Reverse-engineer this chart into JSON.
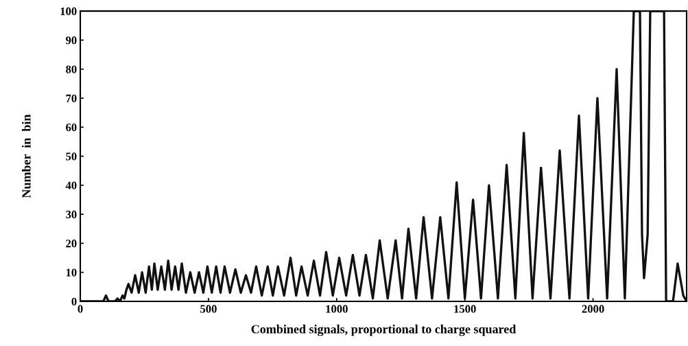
{
  "chart_data": {
    "type": "line",
    "xlabel": "Combined signals, proportional to charge squared",
    "ylabel": "Number  in  bin",
    "xlim": [
      0,
      2365
    ],
    "ylim": [
      0,
      100
    ],
    "xticks": [
      0,
      500,
      1000,
      1500,
      2000
    ],
    "yticks": [
      0,
      10,
      20,
      30,
      40,
      50,
      60,
      70,
      80,
      90,
      100
    ],
    "grid": false,
    "marker": "none",
    "line_style": "solid",
    "series": [
      {
        "color": "#111111",
        "x": [
          0,
          90,
          100,
          110,
          135,
          145,
          155,
          165,
          172,
          180,
          188,
          200,
          214,
          228,
          241,
          255,
          268,
          279,
          289,
          302,
          316,
          330,
          343,
          356,
          370,
          383,
          396,
          412,
          429,
          446,
          463,
          480,
          496,
          513,
          530,
          547,
          563,
          584,
          605,
          626,
          646,
          666,
          686,
          708,
          731,
          751,
          771,
          795,
          820,
          842,
          863,
          887,
          911,
          935,
          959,
          985,
          1010,
          1037,
          1063,
          1089,
          1114,
          1141,
          1168,
          1199,
          1230,
          1255,
          1280,
          1310,
          1339,
          1372,
          1404,
          1436,
          1468,
          1500,
          1532,
          1563,
          1594,
          1629,
          1663,
          1697,
          1730,
          1764,
          1797,
          1834,
          1870,
          1908,
          1945,
          1981,
          2017,
          2055,
          2092,
          2124,
          2159,
          2183,
          2191,
          2199,
          2213,
          2223,
          2277,
          2285,
          2312,
          2330,
          2352,
          2365
        ],
        "values": [
          0,
          0,
          2,
          0,
          0,
          1,
          0,
          2,
          1,
          4,
          6,
          3,
          9,
          3,
          10,
          3,
          12,
          4,
          13,
          4,
          12,
          4,
          14,
          4,
          12,
          4,
          13,
          3,
          10,
          3,
          10,
          3,
          12,
          3,
          12,
          3,
          12,
          3,
          11,
          3,
          9,
          3,
          12,
          2,
          12,
          2,
          12,
          2,
          15,
          2,
          12,
          2,
          14,
          2,
          17,
          2,
          15,
          2,
          16,
          2,
          16,
          1,
          21,
          1,
          21,
          1,
          25,
          1,
          29,
          1,
          29,
          1,
          41,
          1,
          35,
          1,
          40,
          1,
          47,
          1,
          58,
          1,
          46,
          1,
          52,
          1,
          64,
          1,
          70,
          1,
          80,
          1,
          100,
          100,
          23,
          8,
          23,
          100,
          100,
          0,
          0,
          13,
          2,
          0
        ]
      }
    ]
  }
}
